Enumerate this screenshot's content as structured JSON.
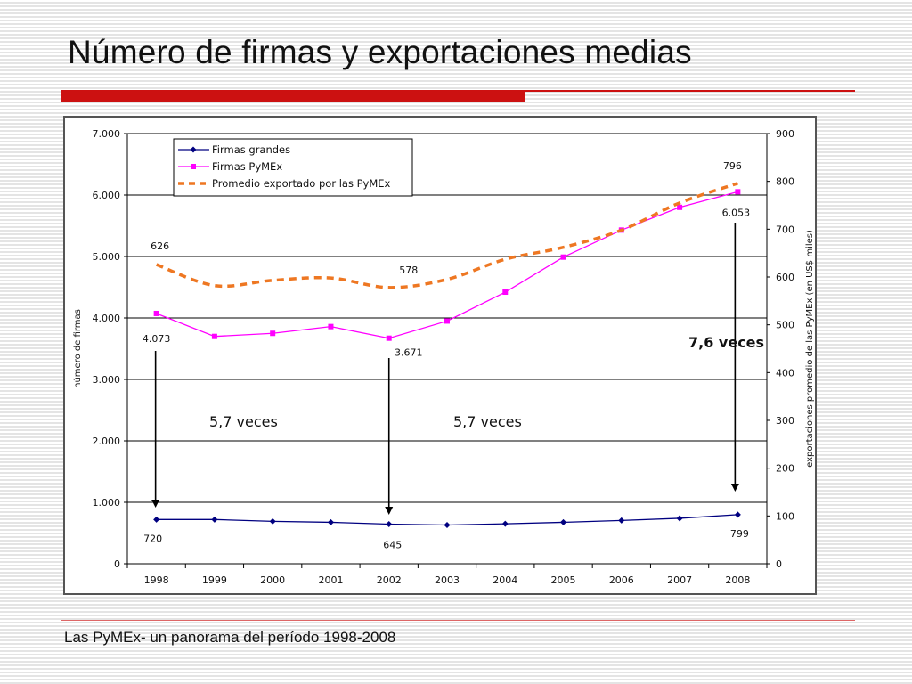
{
  "slide": {
    "title": "Número de firmas y exportaciones medias",
    "footer": "Las PyMEx- un panorama del período 1998-2008"
  },
  "colors": {
    "accent": "#cc1111",
    "firmas_grandes": "#000080",
    "firmas_pymex": "#ff00ff",
    "promedio": "#ee7722"
  },
  "chart_data": {
    "type": "line",
    "x": [
      "1998",
      "1999",
      "2000",
      "2001",
      "2002",
      "2003",
      "2004",
      "2005",
      "2006",
      "2007",
      "2008"
    ],
    "ylabel": "número de firmas",
    "y2label": "exportaciones promedio de las PyMEx (en US$ miles)",
    "ylim": [
      0,
      7000
    ],
    "y2lim": [
      0,
      900
    ],
    "yticks": [
      "0",
      "1.000",
      "2.000",
      "3.000",
      "4.000",
      "5.000",
      "6.000",
      "7.000"
    ],
    "y2ticks": [
      "0",
      "100",
      "200",
      "300",
      "400",
      "500",
      "600",
      "700",
      "800",
      "900"
    ],
    "grid": true,
    "legend_position": "top-left",
    "series": [
      {
        "name": "Firmas grandes",
        "axis": "left",
        "marker": "diamond",
        "values": [
          720,
          720,
          690,
          675,
          645,
          630,
          650,
          675,
          705,
          740,
          799
        ]
      },
      {
        "name": "Firmas PyMEx",
        "axis": "left",
        "marker": "square",
        "values": [
          4073,
          3700,
          3750,
          3860,
          3671,
          3950,
          4420,
          4990,
          5430,
          5800,
          6053
        ]
      },
      {
        "name": "Promedio exportado por las PyMEx",
        "axis": "right",
        "marker": "none",
        "dashed": true,
        "values": [
          626,
          582,
          593,
          598,
          578,
          595,
          637,
          662,
          698,
          755,
          796
        ]
      }
    ],
    "data_labels": [
      {
        "series": 0,
        "index": 0,
        "text": "720"
      },
      {
        "series": 0,
        "index": 4,
        "text": "645"
      },
      {
        "series": 0,
        "index": 10,
        "text": "799"
      },
      {
        "series": 1,
        "index": 0,
        "text": "4.073"
      },
      {
        "series": 1,
        "index": 4,
        "text": "3.671"
      },
      {
        "series": 1,
        "index": 10,
        "text": "6.053"
      },
      {
        "series": 2,
        "index": 0,
        "text": "626"
      },
      {
        "series": 2,
        "index": 4,
        "text": "578"
      },
      {
        "series": 2,
        "index": 10,
        "text": "796"
      }
    ],
    "annotations": [
      {
        "text": "5,7 veces",
        "bold": false,
        "arrow_index": 0
      },
      {
        "text": "5,7 veces",
        "bold": false,
        "arrow_index": 4
      },
      {
        "text": "7,6 veces",
        "bold": true,
        "arrow_index": 10
      }
    ]
  }
}
